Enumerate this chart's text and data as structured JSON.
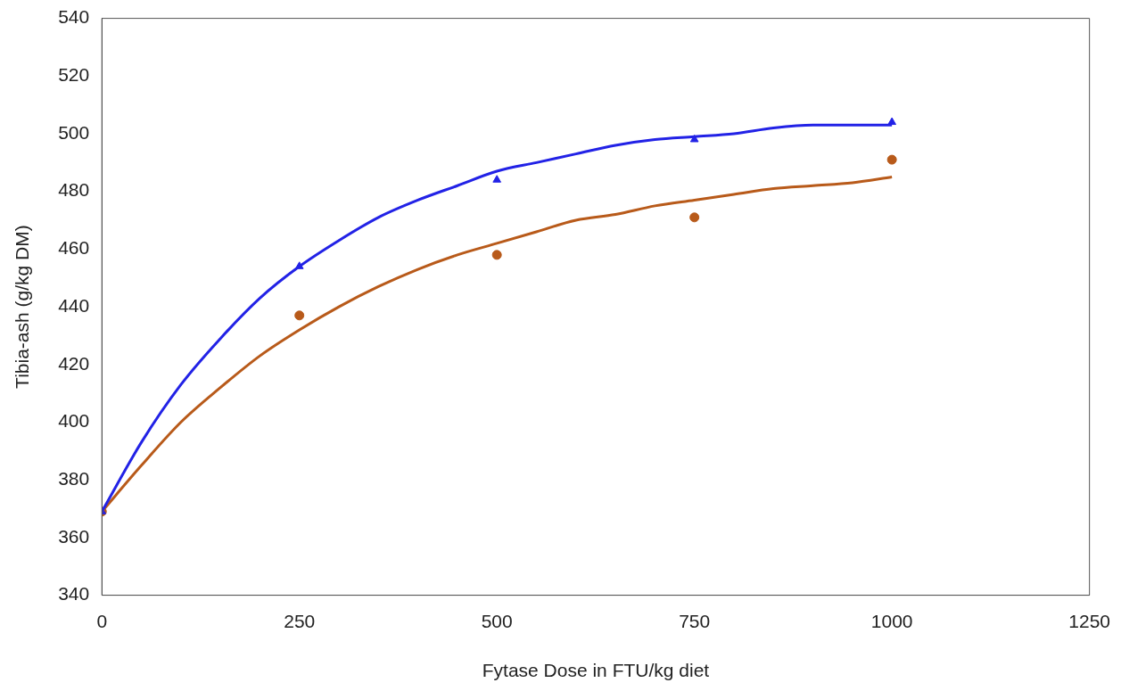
{
  "chart_data": {
    "type": "scatter",
    "xlabel": "Fytase Dose in FTU/kg diet",
    "ylabel": "Tibia-ash (g/kg DM)",
    "xlim": [
      0,
      1250
    ],
    "xticks": [
      0,
      250,
      500,
      750,
      1000,
      1250
    ],
    "ylim": [
      340,
      540
    ],
    "yticks": [
      340,
      360,
      380,
      400,
      420,
      440,
      460,
      480,
      500,
      520,
      540
    ],
    "grid": false,
    "legend": false,
    "series": [
      {
        "type": "line",
        "color": "#2222e6",
        "marker": "none",
        "x": [
          0,
          50,
          100,
          150,
          200,
          250,
          300,
          350,
          400,
          450,
          500,
          550,
          600,
          650,
          700,
          750,
          800,
          850,
          900,
          950,
          1000
        ],
        "values": [
          369,
          393,
          413,
          429,
          443,
          454,
          463,
          471,
          477,
          482,
          487,
          490,
          493,
          496,
          498,
          499,
          500,
          502,
          503,
          503,
          503
        ]
      },
      {
        "type": "line",
        "color": "#b85a1a",
        "marker": "none",
        "x": [
          0,
          50,
          100,
          150,
          200,
          250,
          300,
          350,
          400,
          450,
          500,
          550,
          600,
          650,
          700,
          750,
          800,
          850,
          900,
          950,
          1000
        ],
        "values": [
          369,
          385,
          400,
          412,
          423,
          432,
          440,
          447,
          453,
          458,
          462,
          466,
          470,
          472,
          475,
          477,
          479,
          481,
          482,
          483,
          485
        ]
      },
      {
        "type": "scatter",
        "color": "#2222e6",
        "marker": "triangle",
        "x": [
          0,
          250,
          500,
          750,
          1000
        ],
        "values": [
          369,
          454,
          484,
          498,
          504
        ]
      },
      {
        "type": "scatter",
        "color": "#b85a1a",
        "marker": "circle",
        "x": [
          0,
          250,
          500,
          750,
          1000
        ],
        "values": [
          369,
          437,
          458,
          471,
          491
        ]
      }
    ]
  }
}
